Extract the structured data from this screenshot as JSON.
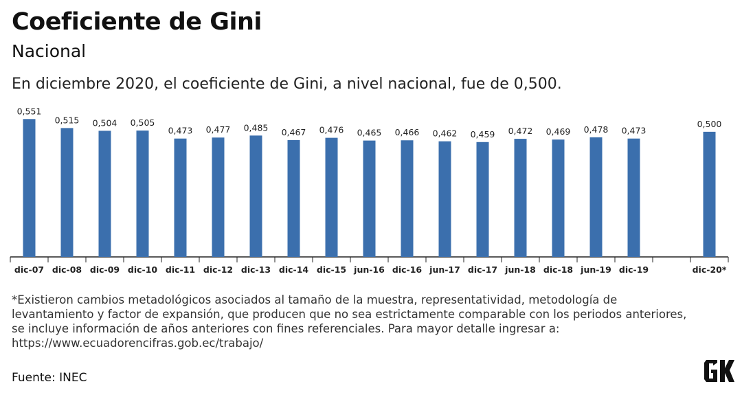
{
  "header": {
    "title": "Coeficiente de Gini",
    "subtitle": "Nacional",
    "description": "En diciembre 2020, el coeficiente de Gini, a nivel nacional, fue de 0,500."
  },
  "chart_data": {
    "type": "bar",
    "title": "Coeficiente de Gini",
    "subtitle": "Nacional",
    "xlabel": "",
    "ylabel": "",
    "ylim": [
      0,
      0.56
    ],
    "grid": false,
    "legend": "none",
    "bar_color": "#3b6fad",
    "categories": [
      "dic-07",
      "dic-08",
      "dic-09",
      "dic-10",
      "dic-11",
      "dic-12",
      "dic-13",
      "dic-14",
      "dic-15",
      "jun-16",
      "dic-16",
      "jun-17",
      "dic-17",
      "jun-18",
      "dic-18",
      "jun-19",
      "dic-19",
      "",
      "dic-20*"
    ],
    "values": [
      0.551,
      0.515,
      0.504,
      0.505,
      0.473,
      0.477,
      0.485,
      0.467,
      0.476,
      0.465,
      0.466,
      0.462,
      0.459,
      0.472,
      0.469,
      0.478,
      0.473,
      null,
      0.5
    ],
    "value_labels": [
      "0,551",
      "0,515",
      "0,504",
      "0,505",
      "0,473",
      "0,477",
      "0,485",
      "0,467",
      "0,476",
      "0,465",
      "0,466",
      "0,462",
      "0,459",
      "0,472",
      "0,469",
      "0,478",
      "0,473",
      "",
      "0,500"
    ]
  },
  "footer": {
    "note": "*Existieron cambios metadológicos asociados al tamaño de la muestra, representatividad, metodología de levantamiento y factor de expansión, que producen que no sea estrictamente comparable con los periodos anteriores, se incluye información de años anteriores con fines referenciales. Para mayor detalle ingresar a: https://www.ecuadorencifras.gob.ec/trabajo/",
    "source": "Fuente: INEC",
    "logo_text": "GK"
  }
}
